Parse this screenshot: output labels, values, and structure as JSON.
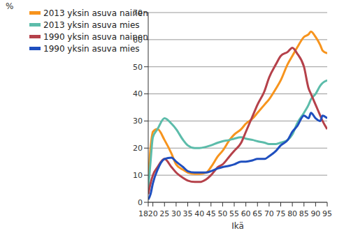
{
  "chart_data": {
    "type": "line",
    "x_label": "Ikä",
    "y_label": "%",
    "x": [
      18,
      19,
      20,
      22,
      25,
      28,
      30,
      33,
      35,
      38,
      40,
      43,
      45,
      48,
      50,
      53,
      55,
      58,
      60,
      63,
      65,
      68,
      70,
      73,
      75,
      78,
      80,
      82,
      85,
      87,
      88,
      90,
      92,
      93,
      95
    ],
    "series": [
      {
        "name": "2013 yksin asuva nainen",
        "color": "#f7941d",
        "values": [
          9,
          20,
          26,
          27,
          23,
          18,
          14,
          12,
          11,
          10.5,
          10.5,
          11,
          13,
          17,
          19,
          23,
          25,
          27,
          29,
          31,
          33,
          36,
          38,
          42,
          45,
          51,
          54,
          57,
          61,
          62,
          63,
          61,
          58,
          56,
          55
        ]
      },
      {
        "name": "2013 yksin asuva mies",
        "color": "#5cbcaa",
        "values": [
          5,
          15,
          24,
          27,
          31,
          29,
          27,
          23,
          21,
          20,
          20,
          20.5,
          21,
          22,
          22.5,
          23,
          23.5,
          24,
          23.5,
          23,
          22.5,
          22,
          21.5,
          21.5,
          22,
          23,
          25,
          29,
          33,
          36,
          38,
          40,
          43,
          44,
          45
        ]
      },
      {
        "name": "1990 yksin asuva nainen",
        "color": "#b5414a",
        "values": [
          3,
          7,
          10,
          13,
          16,
          13,
          11,
          9,
          8,
          7.5,
          7.5,
          8.5,
          10,
          13,
          14,
          17,
          19,
          22,
          26,
          32,
          36,
          41,
          46,
          51,
          54,
          55.5,
          57,
          55,
          50,
          42,
          40,
          36,
          32,
          30,
          27
        ]
      },
      {
        "name": "1990 yksin asuva mies",
        "color": "#1f4fbf",
        "values": [
          1,
          3,
          7,
          12,
          16,
          16.5,
          15,
          13,
          11.5,
          11,
          11,
          11,
          11.5,
          12.5,
          13,
          13.5,
          14,
          15,
          15,
          15.5,
          16,
          16,
          17,
          19,
          21,
          23,
          26,
          28,
          32,
          31,
          33,
          31,
          30,
          32,
          31
        ]
      }
    ],
    "xlim": [
      18,
      95
    ],
    "xticks": [
      18,
      20,
      25,
      30,
      35,
      40,
      45,
      50,
      55,
      60,
      65,
      70,
      75,
      80,
      85,
      90,
      95
    ],
    "ylim": [
      0,
      70
    ],
    "yticks": [
      0,
      10,
      20,
      30,
      40,
      50,
      60,
      70
    ],
    "grid": true,
    "legend": "top-left"
  }
}
